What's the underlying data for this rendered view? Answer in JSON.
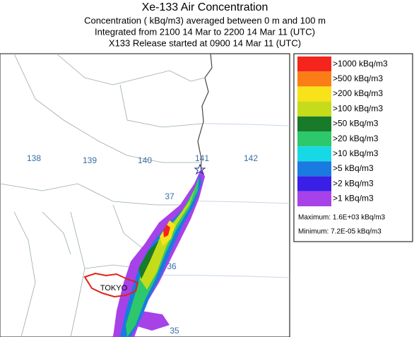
{
  "header": {
    "title": "Xe-133 Air Concentration",
    "lines": [
      "Concentration  ( kBq/m3) averaged between     0 m and   100 m",
      "Integrated from 2100 14 Mar to 2200 14 Mar 11 (UTC)",
      "X133 Release started at 0900 14 Mar 11 (UTC)"
    ]
  },
  "map": {
    "longitude_labels": [
      "138",
      "139",
      "140",
      "141",
      "142"
    ],
    "latitude_labels": [
      "37",
      "36",
      "35"
    ],
    "place_label": "TOKYO"
  },
  "legend": {
    "items": [
      {
        "label": ">1000  kBq/m3",
        "color": "#f5241c"
      },
      {
        "label": ">500  kBq/m3",
        "color": "#fb7d16"
      },
      {
        "label": ">200  kBq/m3",
        "color": "#f8e21a"
      },
      {
        "label": ">100  kBq/m3",
        "color": "#c5dc1a"
      },
      {
        "label": ">50  kBq/m3",
        "color": "#197a2a"
      },
      {
        "label": ">20  kBq/m3",
        "color": "#2cc86b"
      },
      {
        "label": ">10  kBq/m3",
        "color": "#17d9e6"
      },
      {
        "label": ">5  kBq/m3",
        "color": "#1a7ae0"
      },
      {
        "label": ">2  kBq/m3",
        "color": "#3a1fe6"
      },
      {
        "label": ">1  kBq/m3",
        "color": "#a742e8"
      }
    ],
    "maximum": "Maximum: 1.6E+03  kBq/m3",
    "minimum": "Minimum: 7.2E-05  kBq/m3"
  }
}
